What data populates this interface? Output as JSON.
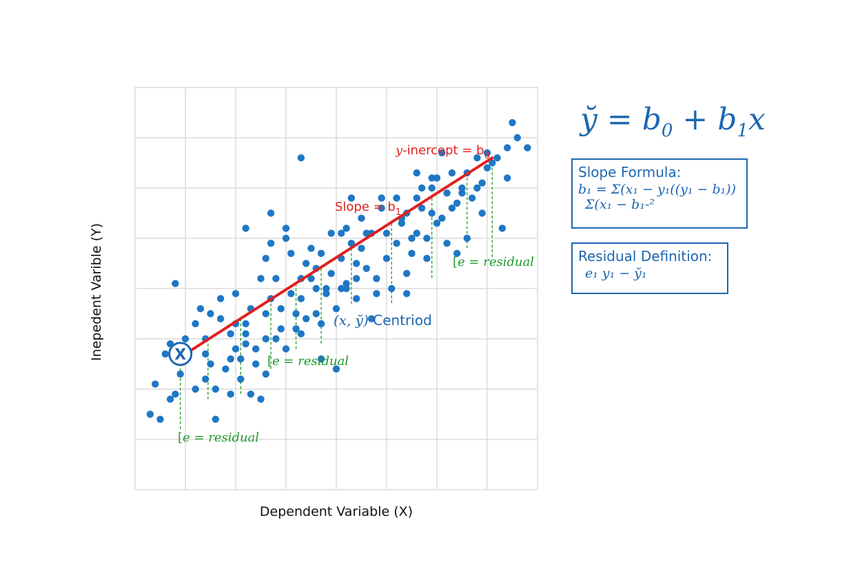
{
  "chart_data": {
    "type": "scatter",
    "xlabel": "Dependent Variable (X)",
    "ylabel": "Inepedent Varible (Y)",
    "xlim": [
      0,
      8
    ],
    "ylim": [
      0,
      8
    ],
    "grid": true,
    "points": [
      [
        0.9,
        2.3
      ],
      [
        1.2,
        2.0
      ],
      [
        1.4,
        2.2
      ],
      [
        1.6,
        1.4
      ],
      [
        1.5,
        2.5
      ],
      [
        1.9,
        2.6
      ],
      [
        1.7,
        3.4
      ],
      [
        0.7,
        2.9
      ],
      [
        0.4,
        2.1
      ],
      [
        0.7,
        1.8
      ],
      [
        0.3,
        1.5
      ],
      [
        0.5,
        1.4
      ],
      [
        0.6,
        2.7
      ],
      [
        1.0,
        3.0
      ],
      [
        1.4,
        3.0
      ],
      [
        2.2,
        3.1
      ],
      [
        2.1,
        2.6
      ],
      [
        1.8,
        2.4
      ],
      [
        2.3,
        1.9
      ],
      [
        2.5,
        1.8
      ],
      [
        1.5,
        3.5
      ],
      [
        1.9,
        3.1
      ],
      [
        1.4,
        2.7
      ],
      [
        2.1,
        2.2
      ],
      [
        2.0,
        2.8
      ],
      [
        2.6,
        2.3
      ],
      [
        3.0,
        2.8
      ],
      [
        3.3,
        3.1
      ],
      [
        3.7,
        2.6
      ],
      [
        4.0,
        2.4
      ],
      [
        3.2,
        3.5
      ],
      [
        3.7,
        3.3
      ],
      [
        3.5,
        4.2
      ],
      [
        3.8,
        4.0
      ],
      [
        2.9,
        3.6
      ],
      [
        2.6,
        3.5
      ],
      [
        2.5,
        4.2
      ],
      [
        2.8,
        4.2
      ],
      [
        2.7,
        3.8
      ],
      [
        3.1,
        3.9
      ],
      [
        3.3,
        3.8
      ],
      [
        3.6,
        4.4
      ],
      [
        4.2,
        4.1
      ],
      [
        4.4,
        4.5
      ],
      [
        3.4,
        4.5
      ],
      [
        4.6,
        4.4
      ],
      [
        4.8,
        4.2
      ],
      [
        5.0,
        4.6
      ],
      [
        5.2,
        4.9
      ],
      [
        4.7,
        5.1
      ],
      [
        4.1,
        4.0
      ],
      [
        5.3,
        5.3
      ],
      [
        5.6,
        5.8
      ],
      [
        5.8,
        5.0
      ],
      [
        6.0,
        5.3
      ],
      [
        6.4,
        5.7
      ],
      [
        6.2,
        5.9
      ],
      [
        5.9,
        6.2
      ],
      [
        6.6,
        6.3
      ],
      [
        6.8,
        6.0
      ],
      [
        7.0,
        6.4
      ],
      [
        7.2,
        6.6
      ],
      [
        7.5,
        7.3
      ],
      [
        7.6,
        7.0
      ],
      [
        7.4,
        6.2
      ],
      [
        7.8,
        6.8
      ],
      [
        7.3,
        5.2
      ],
      [
        7.1,
        6.5
      ],
      [
        6.7,
        5.8
      ],
      [
        6.3,
        5.6
      ],
      [
        5.4,
        5.5
      ],
      [
        4.9,
        5.6
      ],
      [
        4.3,
        5.8
      ],
      [
        3.3,
        6.6
      ],
      [
        2.7,
        5.5
      ],
      [
        3.0,
        5.2
      ],
      [
        2.2,
        5.2
      ],
      [
        0.8,
        4.1
      ],
      [
        2.0,
        3.9
      ],
      [
        1.3,
        3.6
      ],
      [
        2.7,
        4.9
      ],
      [
        3.5,
        4.8
      ],
      [
        3.9,
        5.1
      ],
      [
        4.2,
        5.2
      ],
      [
        5.5,
        5.0
      ],
      [
        5.5,
        4.7
      ],
      [
        6.2,
        4.9
      ],
      [
        6.1,
        6.7
      ],
      [
        6.5,
        5.9
      ],
      [
        5.8,
        4.6
      ],
      [
        5.4,
        3.9
      ],
      [
        6.4,
        4.7
      ],
      [
        6.6,
        5.0
      ],
      [
        5.9,
        5.5
      ],
      [
        4.5,
        4.8
      ],
      [
        4.7,
        3.4
      ],
      [
        2.4,
        2.8
      ],
      [
        2.6,
        3.0
      ],
      [
        3.1,
        4.7
      ],
      [
        3.6,
        4.0
      ],
      [
        4.0,
        3.6
      ],
      [
        4.4,
        4.2
      ],
      [
        4.8,
        3.9
      ],
      [
        5.1,
        4.0
      ],
      [
        6.9,
        5.5
      ],
      [
        6.0,
        6.2
      ],
      [
        5.6,
        6.3
      ],
      [
        4.9,
        5.8
      ],
      [
        4.1,
        5.1
      ],
      [
        3.4,
        3.4
      ],
      [
        2.9,
        3.2
      ],
      [
        2.3,
        3.6
      ],
      [
        1.7,
        3.8
      ],
      [
        1.2,
        3.3
      ],
      [
        1.0,
        2.6
      ],
      [
        3.9,
        4.3
      ],
      [
        4.6,
        5.1
      ],
      [
        5.2,
        5.8
      ],
      [
        5.7,
        5.6
      ],
      [
        6.8,
        6.6
      ],
      [
        5.4,
        4.3
      ],
      [
        7.4,
        6.8
      ],
      [
        1.9,
        1.9
      ],
      [
        3.3,
        4.2
      ],
      [
        3.6,
        3.5
      ],
      [
        2.2,
        3.3
      ],
      [
        2.6,
        4.6
      ],
      [
        3.0,
        5.0
      ],
      [
        4.3,
        4.9
      ],
      [
        5.0,
        5.1
      ],
      [
        5.9,
        6.0
      ],
      [
        6.3,
        6.3
      ],
      [
        1.6,
        2.0
      ],
      [
        0.8,
        1.9
      ],
      [
        2.4,
        2.5
      ],
      [
        4.1,
        4.6
      ],
      [
        4.5,
        5.4
      ],
      [
        3.2,
        3.2
      ],
      [
        3.8,
        3.9
      ],
      [
        4.2,
        4.0
      ],
      [
        6.5,
        6.0
      ],
      [
        7.0,
        6.7
      ],
      [
        5.3,
        5.4
      ],
      [
        5.6,
        5.1
      ],
      [
        2.8,
        3.0
      ],
      [
        2.2,
        2.9
      ],
      [
        2.0,
        3.3
      ],
      [
        3.7,
        4.7
      ],
      [
        4.4,
        3.8
      ],
      [
        6.1,
        5.4
      ],
      [
        6.9,
        6.1
      ],
      [
        5.7,
        6.0
      ]
    ],
    "regression_line": {
      "x": [
        1.0,
        7.1
      ],
      "y": [
        2.7,
        6.6
      ]
    },
    "centroid_marker": {
      "x": 0.9,
      "y": 2.7,
      "label": "X"
    },
    "residual_stems": [
      {
        "x": 0.9,
        "y0": 2.7,
        "y1": 1.2
      },
      {
        "x": 1.45,
        "y0": 3.0,
        "y1": 1.8
      },
      {
        "x": 2.1,
        "y0": 3.4,
        "y1": 1.9
      },
      {
        "x": 2.7,
        "y0": 3.8,
        "y1": 2.4
      },
      {
        "x": 3.2,
        "y0": 4.1,
        "y1": 2.8
      },
      {
        "x": 3.7,
        "y0": 4.4,
        "y1": 2.9
      },
      {
        "x": 4.3,
        "y0": 4.8,
        "y1": 3.7
      },
      {
        "x": 5.1,
        "y0": 5.3,
        "y1": 3.7
      },
      {
        "x": 5.9,
        "y0": 5.8,
        "y1": 4.2
      },
      {
        "x": 6.6,
        "y0": 6.2,
        "y1": 4.8
      },
      {
        "x": 7.1,
        "y0": 6.6,
        "y1": 4.6
      }
    ],
    "annotations": {
      "intercept": {
        "prefix": "y",
        "text": "-inercept = b",
        "sub": "0"
      },
      "slope": {
        "text": "Slope = b",
        "sub": "1"
      },
      "centroid": {
        "math": "(x, y̆)",
        "text": " Centriod"
      },
      "residual_label": "e = residual",
      "residual_bracket": "["
    }
  },
  "equation": {
    "lhs": "y̆ = b",
    "sub0": "0",
    "plus": " + b",
    "sub1": "1",
    "rhs": "x"
  },
  "slope_box": {
    "title": "Slope Formula:",
    "line1": "b₁ = Σ(x₁ − y₁((y₁ − b₁))",
    "line2": "Σ(x₁ − b₁-²"
  },
  "residual_box": {
    "title": "Residual Definition:",
    "line1": "e₁   y₁ − y̆₁"
  },
  "colors": {
    "points": "#1f77c4",
    "line": "#e02020",
    "residual": "#2ca02c",
    "accent": "#1d67b0"
  }
}
